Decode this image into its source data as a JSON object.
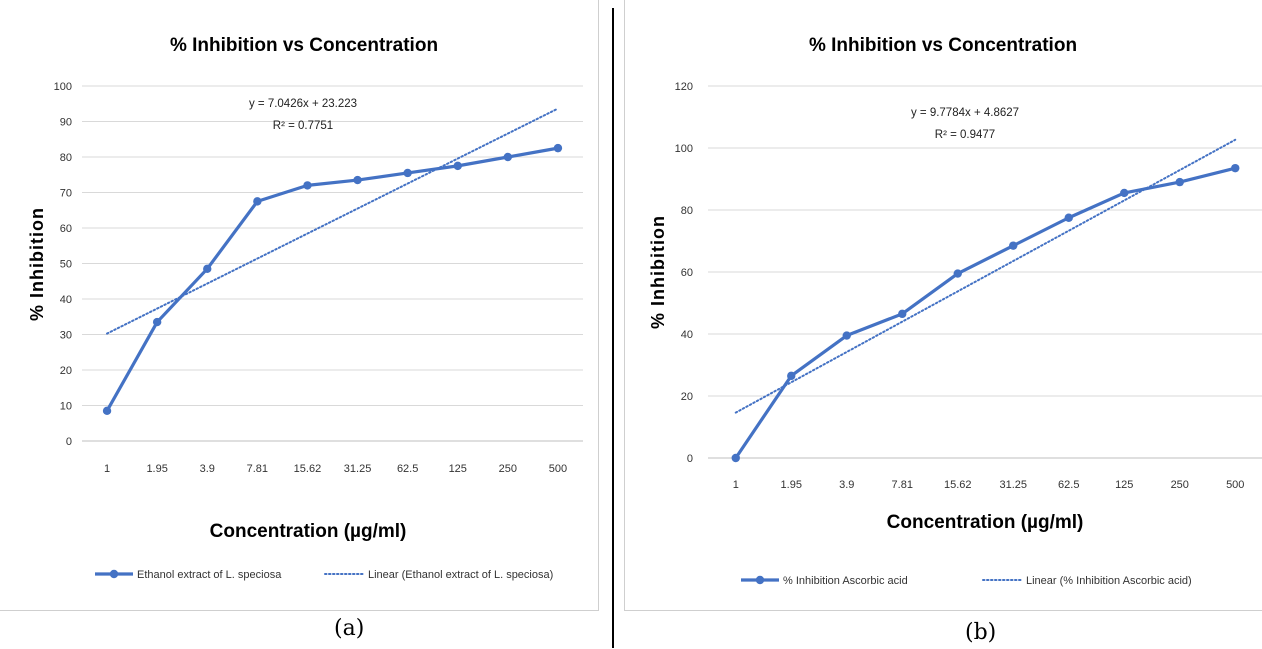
{
  "chart_data": [
    {
      "type": "line",
      "title": "% Inhibition  vs Concentration",
      "xlabel": "Concentration (µg/ml)",
      "ylabel": "% Inhibition",
      "categories": [
        "1",
        "1.95",
        "3.9",
        "7.81",
        "15.62",
        "31.25",
        "62.5",
        "125",
        "250",
        "500"
      ],
      "ylim": [
        0,
        100
      ],
      "yticks": [
        0,
        10,
        20,
        30,
        40,
        50,
        60,
        70,
        80,
        90,
        100
      ],
      "grid": true,
      "legend_position": "bottom",
      "series": [
        {
          "name": "Ethanol extract of L. speciosa",
          "values": [
            8.5,
            33.5,
            48.5,
            67.5,
            72,
            73.5,
            75.5,
            77.5,
            80,
            82.5
          ],
          "color": "#4472C4",
          "style": "solid"
        }
      ],
      "trendline": {
        "name": "Linear (Ethanol extract of L. speciosa)",
        "slope": 7.0426,
        "intercept": 23.223,
        "color": "#4472C4",
        "style": "dotted"
      },
      "equation": "y = 7.0426x + 23.223",
      "r2": "R² = 0.7751",
      "panel_label": "(a)"
    },
    {
      "type": "line",
      "title": "% Inhibition vs Concentration",
      "xlabel": "Concentration (µg/ml)",
      "ylabel": "% Inhibition",
      "categories": [
        "1",
        "1.95",
        "3.9",
        "7.81",
        "15.62",
        "31.25",
        "62.5",
        "125",
        "250",
        "500"
      ],
      "ylim": [
        0,
        120
      ],
      "yticks": [
        0,
        20,
        40,
        60,
        80,
        100,
        120
      ],
      "grid": true,
      "legend_position": "bottom",
      "series": [
        {
          "name": "% Inhibition Ascorbic acid",
          "values": [
            0,
            26.5,
            39.5,
            46.5,
            59.5,
            68.5,
            77.5,
            85.5,
            89,
            93.5
          ],
          "color": "#4472C4",
          "style": "solid"
        }
      ],
      "trendline": {
        "name": "Linear (% Inhibition Ascorbic acid)",
        "slope": 9.7784,
        "intercept": 4.8627,
        "color": "#4472C4",
        "style": "dotted"
      },
      "equation": "y = 9.7784x + 4.8627",
      "r2": "R² = 0.9477",
      "panel_label": "(b)"
    }
  ]
}
